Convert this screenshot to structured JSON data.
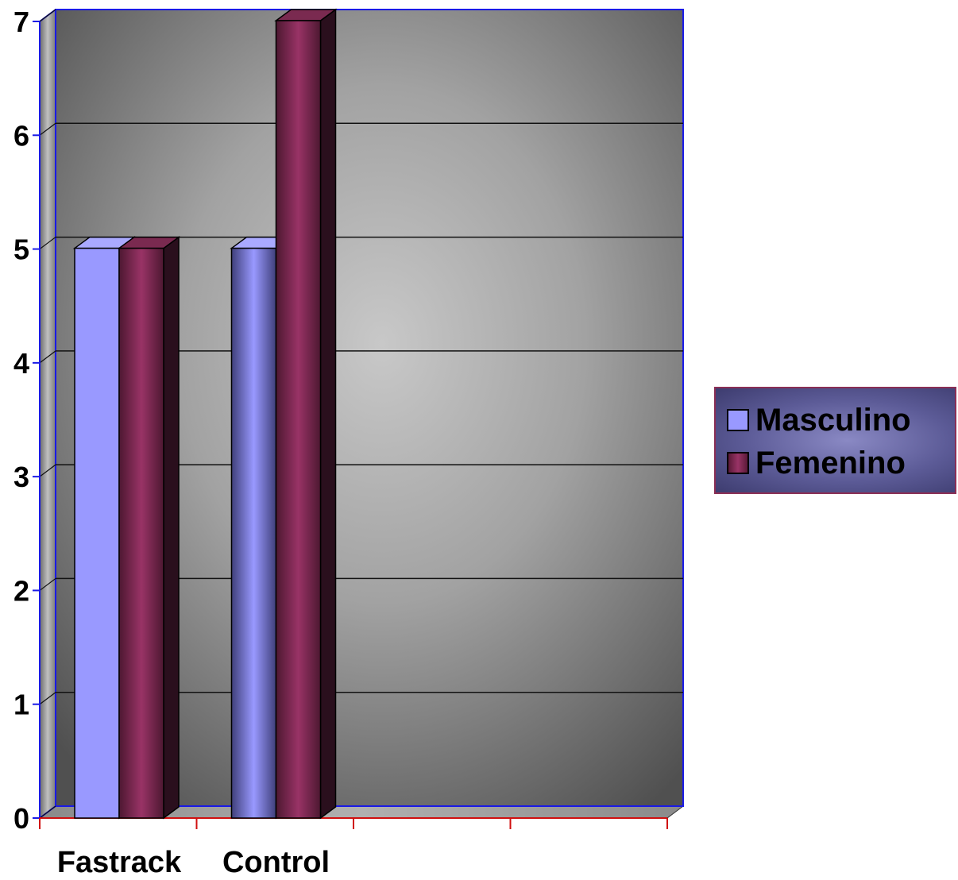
{
  "chart_data": {
    "type": "bar",
    "categories": [
      "Fastrack",
      "Control"
    ],
    "series": [
      {
        "name": "Masculino",
        "values": [
          5,
          5
        ],
        "color": "#9999ff"
      },
      {
        "name": "Femenino",
        "values": [
          5,
          7
        ],
        "color": "#993366"
      }
    ],
    "yticks": [
      "0",
      "1",
      "2",
      "3",
      "4",
      "5",
      "6",
      "7"
    ],
    "ylim": [
      0,
      7
    ],
    "grid": true,
    "legend_position": "right",
    "style": "3d"
  }
}
